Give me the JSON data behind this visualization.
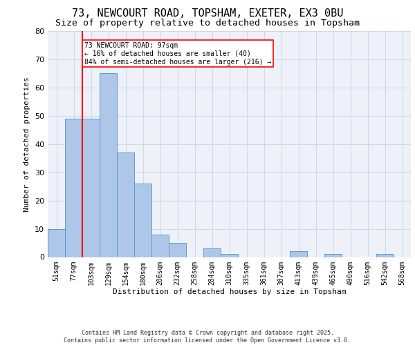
{
  "title_line1": "73, NEWCOURT ROAD, TOPSHAM, EXETER, EX3 0BU",
  "title_line2": "Size of property relative to detached houses in Topsham",
  "xlabel": "Distribution of detached houses by size in Topsham",
  "ylabel": "Number of detached properties",
  "categories": [
    "51sqm",
    "77sqm",
    "103sqm",
    "129sqm",
    "154sqm",
    "180sqm",
    "206sqm",
    "232sqm",
    "258sqm",
    "284sqm",
    "310sqm",
    "335sqm",
    "361sqm",
    "387sqm",
    "413sqm",
    "439sqm",
    "465sqm",
    "490sqm",
    "516sqm",
    "542sqm",
    "568sqm"
  ],
  "values": [
    10,
    49,
    49,
    65,
    37,
    26,
    8,
    5,
    0,
    3,
    1,
    0,
    0,
    0,
    2,
    0,
    1,
    0,
    0,
    1,
    0
  ],
  "bar_color": "#aec6e8",
  "bar_edge_color": "#5b9bd5",
  "grid_color": "#d0d8e8",
  "background_color": "#eef2f8",
  "annotation_text": "73 NEWCOURT ROAD: 97sqm\n← 16% of detached houses are smaller (40)\n84% of semi-detached houses are larger (216) →",
  "ylim": [
    0,
    80
  ],
  "yticks": [
    0,
    10,
    20,
    30,
    40,
    50,
    60,
    70,
    80
  ],
  "footer": "Contains HM Land Registry data © Crown copyright and database right 2025.\nContains public sector information licensed under the Open Government Licence v3.0.",
  "title_fontsize": 11,
  "subtitle_fontsize": 9.5,
  "tick_fontsize": 7,
  "label_fontsize": 8,
  "annotation_fontsize": 7
}
